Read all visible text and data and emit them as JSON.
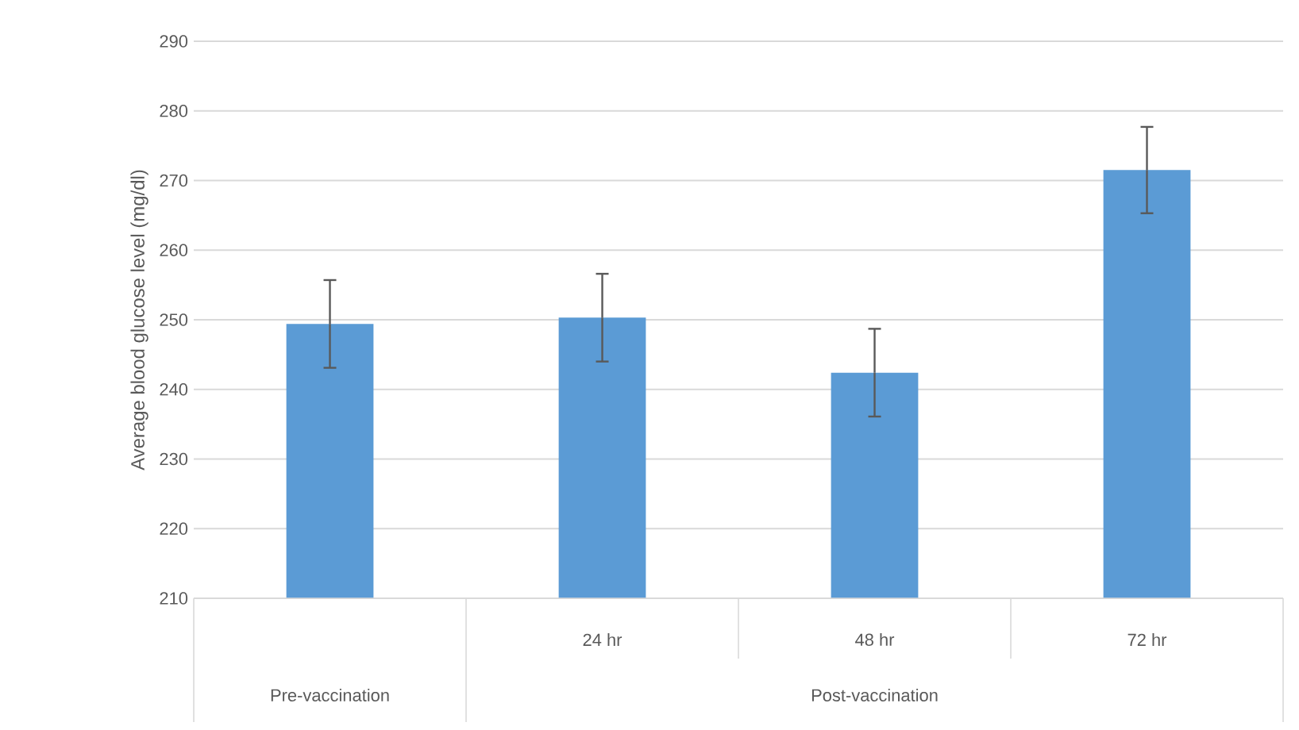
{
  "chart_data": {
    "type": "bar",
    "ylabel": "Average blood glucose level (mg/dl)",
    "categories": [
      null,
      "24 hr",
      "48 hr",
      "72 hr"
    ],
    "values": [
      249.4,
      250.3,
      242.4,
      271.5
    ],
    "errors": [
      6.3,
      6.3,
      6.3,
      6.2
    ],
    "color": "#5b9bd5",
    "ylim": [
      210,
      290
    ],
    "yticks": [
      210,
      220,
      230,
      240,
      250,
      260,
      270,
      280,
      290
    ],
    "grid": "y",
    "annotations": [
      "Pre-vaccination",
      "Post-vaccination"
    ]
  }
}
